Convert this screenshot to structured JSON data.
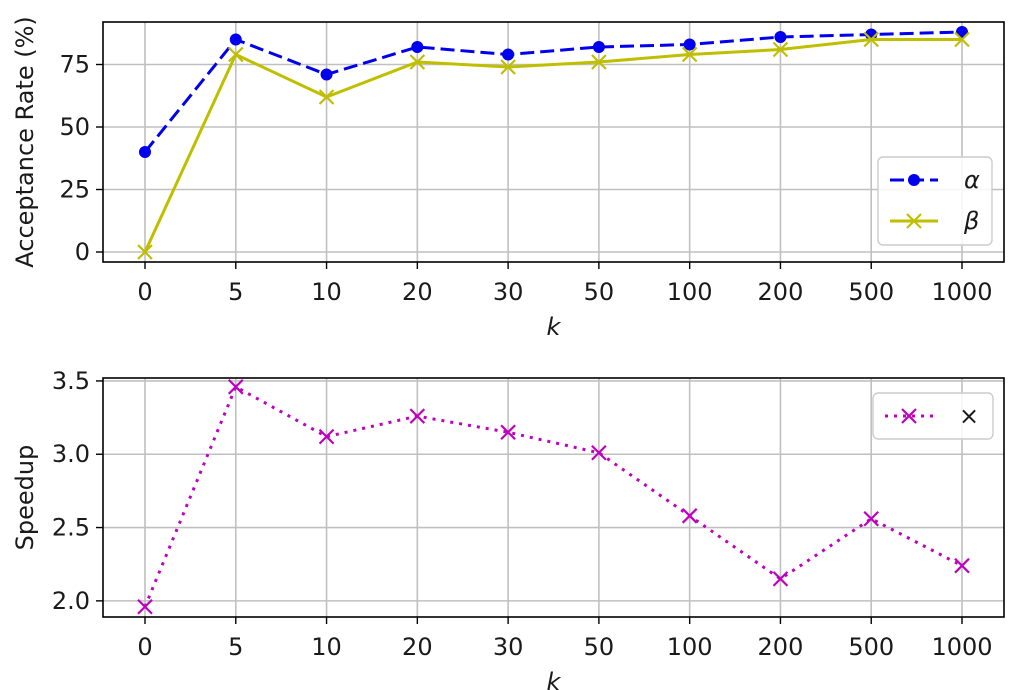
{
  "chart_data": [
    {
      "type": "line",
      "categories": [
        "0",
        "5",
        "10",
        "20",
        "30",
        "50",
        "100",
        "200",
        "500",
        "1000"
      ],
      "xlabel": "k",
      "ylabel": "Acceptance Rate (%)",
      "ylim": [
        -4,
        92
      ],
      "yticks": [
        0,
        25,
        50,
        75
      ],
      "grid": true,
      "legend_position": "lower-right",
      "series": [
        {
          "name": "α",
          "color": "#0000ee",
          "style": "dashed",
          "marker": "dot",
          "values": [
            40,
            85,
            71,
            82,
            79,
            82,
            83,
            86,
            87,
            88
          ]
        },
        {
          "name": "β",
          "color": "#bfbf00",
          "style": "solid",
          "marker": "x",
          "values": [
            0,
            79,
            62,
            76,
            74,
            76,
            79,
            81,
            85,
            85
          ]
        }
      ]
    },
    {
      "type": "line",
      "categories": [
        "0",
        "5",
        "10",
        "20",
        "30",
        "50",
        "100",
        "200",
        "500",
        "1000"
      ],
      "xlabel": "k",
      "ylabel": "Speedup",
      "ylim": [
        1.89,
        3.52
      ],
      "yticks": [
        "2.0",
        "2.5",
        "3.0",
        "3.5"
      ],
      "grid": true,
      "legend_position": "upper-right",
      "series": [
        {
          "name": "×",
          "color": "#bf00bf",
          "style": "dotted",
          "marker": "x",
          "values": [
            1.96,
            3.46,
            3.12,
            3.26,
            3.15,
            3.01,
            2.58,
            2.15,
            2.56,
            2.24
          ]
        }
      ]
    }
  ]
}
